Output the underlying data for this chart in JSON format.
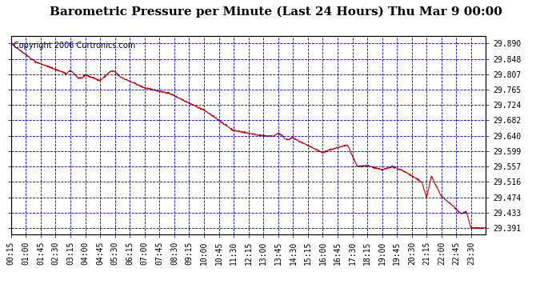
{
  "title": "Barometric Pressure per Minute (Last 24 Hours) Thu Mar 9 00:00",
  "copyright": "Copyright 2006 Curtronics.com",
  "line_color": "#cc0000",
  "background_color": "#ffffff",
  "grid_color": "#0000bb",
  "yticks": [
    29.89,
    29.848,
    29.807,
    29.765,
    29.724,
    29.682,
    29.64,
    29.599,
    29.557,
    29.516,
    29.474,
    29.433,
    29.391
  ],
  "ylim": [
    29.375,
    29.91
  ],
  "xtick_labels": [
    "00:15",
    "01:00",
    "01:45",
    "02:30",
    "03:15",
    "04:00",
    "04:45",
    "05:30",
    "06:15",
    "07:00",
    "07:45",
    "08:30",
    "09:15",
    "10:00",
    "10:45",
    "11:30",
    "12:15",
    "13:00",
    "13:45",
    "14:30",
    "15:15",
    "16:00",
    "16:45",
    "17:30",
    "18:15",
    "19:00",
    "19:45",
    "20:30",
    "21:15",
    "22:00",
    "22:45",
    "23:30"
  ],
  "title_fontsize": 11,
  "copyright_fontsize": 7,
  "tick_fontsize": 7
}
